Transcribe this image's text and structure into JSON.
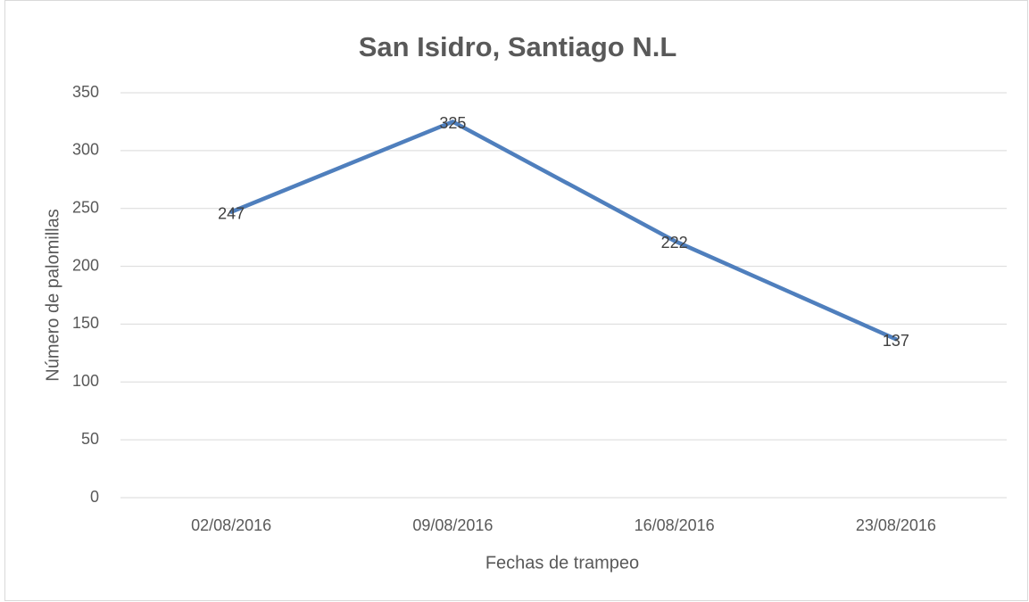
{
  "chart_data": {
    "type": "line",
    "title": "San Isidro, Santiago N.L",
    "x_label": "Fechas de trampeo",
    "y_label": "Número de palomillas",
    "categories": [
      "02/08/2016",
      "09/08/2016",
      "16/08/2016",
      "23/08/2016"
    ],
    "values": [
      247,
      325,
      222,
      137
    ],
    "color": "#4f7fbd",
    "ylim": [
      0,
      350
    ],
    "yticks": [
      0,
      50,
      100,
      150,
      200,
      250,
      300,
      350
    ],
    "grid": true
  }
}
